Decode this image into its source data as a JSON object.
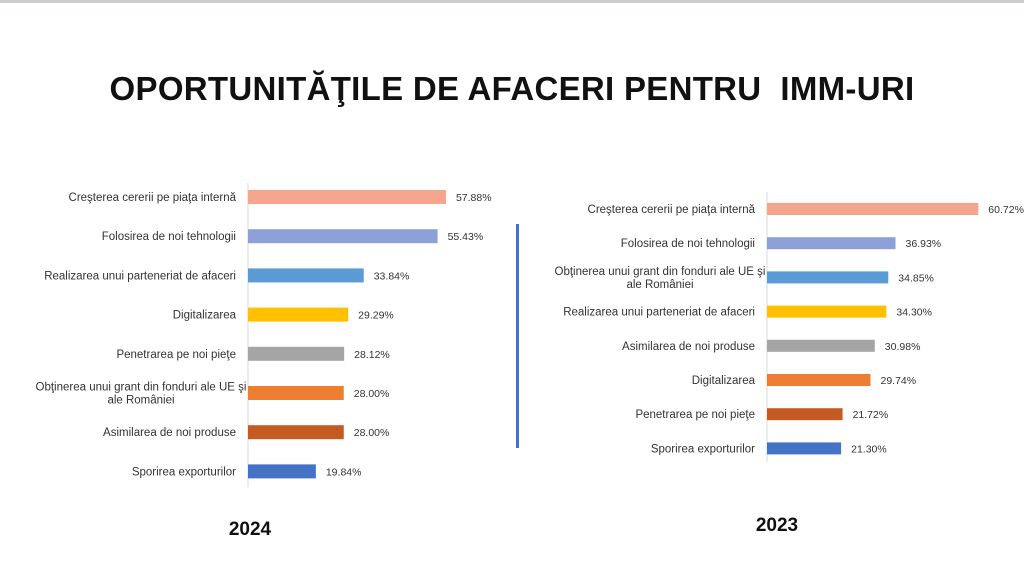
{
  "page": {
    "title": "OPORTUNITĂŢILE DE AFACERI PENTRU  IMM-URI"
  },
  "chart_data": [
    {
      "type": "bar",
      "orientation": "horizontal",
      "title": "2024",
      "categories": [
        "Creşterea cererii pe piaţa internă",
        "Folosirea de noi tehnologii",
        "Realizarea unui parteneriat de afaceri",
        "Digitalizarea",
        "Penetrarea pe noi pieţe",
        "Obţinerea unui grant din fonduri ale UE şi ale României",
        "Asimilarea de noi produse",
        "Sporirea exporturilor"
      ],
      "category_lines": [
        [
          "Creşterea cererii pe piaţa internă"
        ],
        [
          "Folosirea de noi tehnologii"
        ],
        [
          "Realizarea unui parteneriat de afaceri"
        ],
        [
          "Digitalizarea"
        ],
        [
          "Penetrarea pe noi pieţe"
        ],
        [
          "Obţinerea unui grant din fonduri ale UE şi",
          "ale României"
        ],
        [
          "Asimilarea de noi produse"
        ],
        [
          "Sporirea exporturilor"
        ]
      ],
      "values": [
        57.88,
        55.43,
        33.84,
        29.29,
        28.12,
        28.0,
        28.0,
        19.84
      ],
      "value_labels": [
        "57.88%",
        "55.43%",
        "33.84%",
        "29.29%",
        "28.12%",
        "28.00%",
        "28.00%",
        "19.84%"
      ],
      "colors": [
        "#f4a58d",
        "#8ea0d8",
        "#5b9bd5",
        "#ffc000",
        "#a5a5a5",
        "#ed7d31",
        "#c55a22",
        "#4472c4"
      ],
      "unit": "%"
    },
    {
      "type": "bar",
      "orientation": "horizontal",
      "title": "2023",
      "categories": [
        "Creşterea cererii pe piaţa internă",
        "Folosirea de noi tehnologii",
        "Obţinerea unui grant din fonduri ale UE şi ale României",
        "Realizarea unui parteneriat de afaceri",
        "Asimilarea de noi produse",
        "Digitalizarea",
        "Penetrarea pe noi pieţe",
        "Sporirea exporturilor"
      ],
      "category_lines": [
        [
          "Creşterea cererii pe piaţa internă"
        ],
        [
          "Folosirea de noi tehnologii"
        ],
        [
          "Obţinerea unui grant din fonduri ale UE şi",
          "ale României"
        ],
        [
          "Realizarea unui parteneriat de afaceri"
        ],
        [
          "Asimilarea de noi produse"
        ],
        [
          "Digitalizarea"
        ],
        [
          "Penetrarea pe noi pieţe"
        ],
        [
          "Sporirea exporturilor"
        ]
      ],
      "values": [
        60.72,
        36.93,
        34.85,
        34.3,
        30.98,
        29.74,
        21.72,
        21.3
      ],
      "value_labels": [
        "60.72%",
        "36.93%",
        "34.85%",
        "34.30%",
        "30.98%",
        "29.74%",
        "21.72%",
        "21.30%"
      ],
      "colors": [
        "#f4a58d",
        "#8ea0d8",
        "#5b9bd5",
        "#ffc000",
        "#a5a5a5",
        "#ed7d31",
        "#c55a22",
        "#4472c4"
      ],
      "unit": "%"
    }
  ]
}
